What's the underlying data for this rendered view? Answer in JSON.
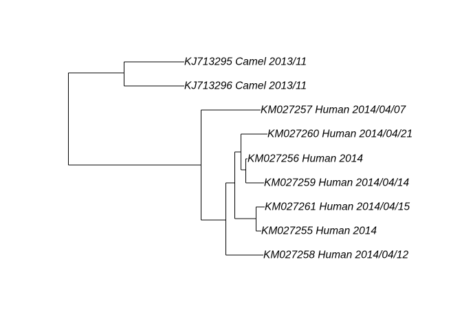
{
  "tree": {
    "line_color": "#000000",
    "tips": [
      {
        "id": "t1",
        "label": "KJ713295 Camel 2013/11"
      },
      {
        "id": "t2",
        "label": "KJ713296 Camel 2013/11"
      },
      {
        "id": "t3",
        "label": "KM027257 Human 2014/04/07"
      },
      {
        "id": "t4",
        "label": "KM027260 Human 2014/04/21"
      },
      {
        "id": "t5",
        "label": "KM027256 Human 2014"
      },
      {
        "id": "t6",
        "label": "KM027259 Human 2014/04/14"
      },
      {
        "id": "t7",
        "label": "KM027261 Human 2014/04/15"
      },
      {
        "id": "t8",
        "label": "KM027255 Human 2014"
      },
      {
        "id": "t9",
        "label": "KM027258 Human 2014/04/12"
      }
    ]
  }
}
